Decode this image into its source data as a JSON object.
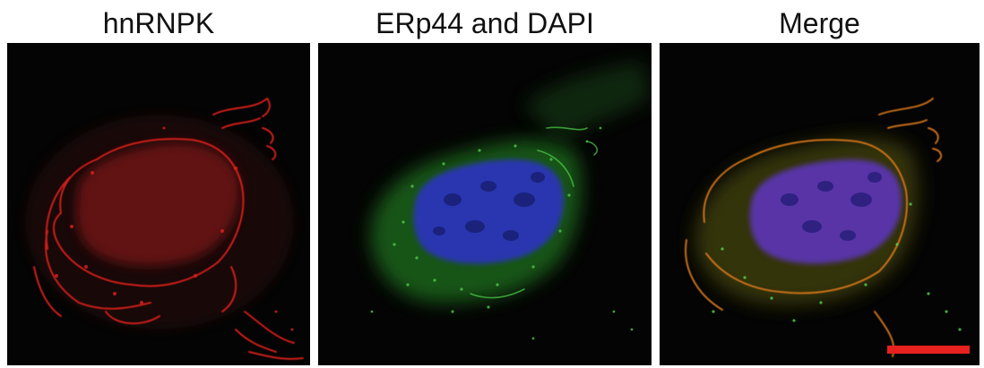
{
  "figure": {
    "panels": [
      {
        "id": "hnrnpk",
        "title": "hnRNPK",
        "channels": [
          "red"
        ]
      },
      {
        "id": "erp44-dapi",
        "title": "ERp44 and DAPI",
        "channels": [
          "green",
          "blue"
        ]
      },
      {
        "id": "merge",
        "title": "Merge",
        "channels": [
          "red",
          "green",
          "blue"
        ]
      }
    ],
    "colors": {
      "background": "#040404",
      "red_channel": "#e0201c",
      "green_channel": "#3fbf3c",
      "blue_channel": "#2a34b8",
      "merge_overlap": "#d9781e",
      "scale_bar": "#e8201e"
    },
    "scale_bar": {
      "present": true,
      "label": ""
    }
  }
}
